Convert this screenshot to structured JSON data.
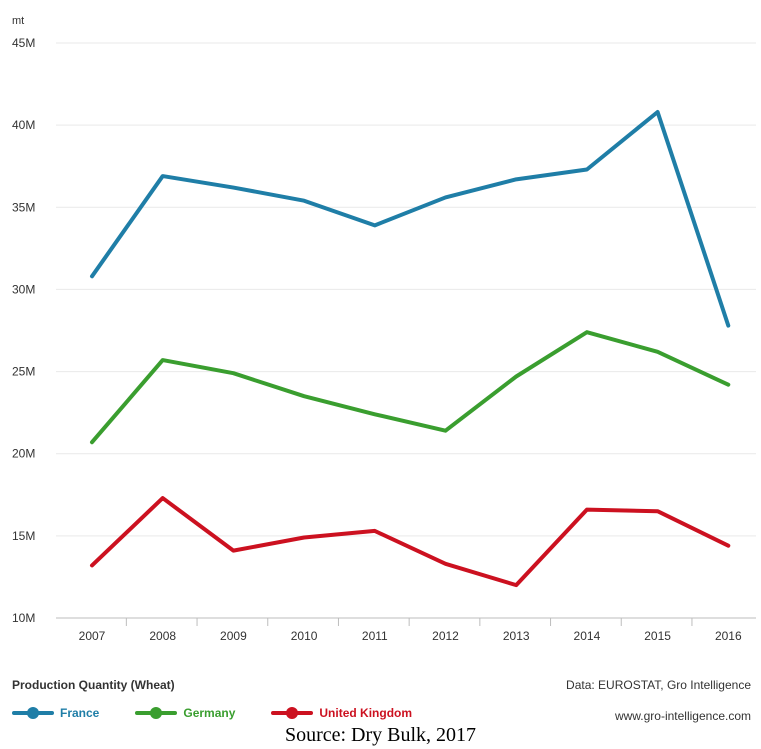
{
  "chart_data": {
    "type": "line",
    "unit_label": "mt",
    "categories": [
      "2007",
      "2008",
      "2009",
      "2010",
      "2011",
      "2012",
      "2013",
      "2014",
      "2015",
      "2016"
    ],
    "ylim": [
      10,
      45
    ],
    "yticks": [
      {
        "value": 10,
        "label": "10M"
      },
      {
        "value": 15,
        "label": "15M"
      },
      {
        "value": 20,
        "label": "20M"
      },
      {
        "value": 25,
        "label": "25M"
      },
      {
        "value": 30,
        "label": "30M"
      },
      {
        "value": 35,
        "label": "35M"
      },
      {
        "value": 40,
        "label": "40M"
      },
      {
        "value": 45,
        "label": "45M"
      }
    ],
    "grid": true,
    "legend_position": "bottom-left",
    "series": [
      {
        "name": "France",
        "color": "#1f7ea7",
        "values": [
          30.8,
          36.9,
          36.2,
          35.4,
          33.9,
          35.6,
          36.7,
          37.3,
          40.8,
          27.8
        ]
      },
      {
        "name": "Germany",
        "color": "#3a9e2f",
        "values": [
          20.7,
          25.7,
          24.9,
          23.5,
          22.4,
          21.4,
          24.7,
          27.4,
          26.2,
          24.2
        ]
      },
      {
        "name": "United Kingdom",
        "color": "#cc1120",
        "values": [
          13.2,
          17.3,
          14.1,
          14.9,
          15.3,
          13.3,
          12.0,
          16.6,
          16.5,
          14.4
        ]
      }
    ]
  },
  "footer": {
    "title": "Production Quantity (Wheat)",
    "source": "Data: EUROSTAT, Gro Intelligence",
    "website": "www.gro-intelligence.com"
  },
  "caption": "Source: Dry Bulk, 2017"
}
